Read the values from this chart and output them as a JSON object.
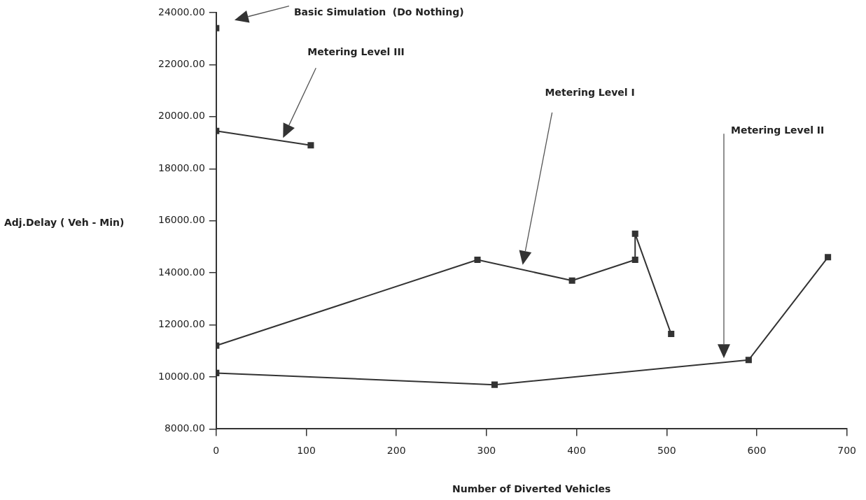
{
  "chart_data": {
    "type": "line",
    "xlabel": "Number of Diverted Vehicles",
    "ylabel": "Adj.Delay ( Veh - Min)",
    "xlim": [
      0,
      700
    ],
    "xticks": [
      0,
      100,
      200,
      300,
      400,
      500,
      600,
      700
    ],
    "ylim": [
      8000,
      24000
    ],
    "yticks": [
      {
        "value": 8000,
        "label": "8000.00"
      },
      {
        "value": 10000,
        "label": "10000.00"
      },
      {
        "value": 12000,
        "label": "12000.00"
      },
      {
        "value": 14000,
        "label": "14000.00"
      },
      {
        "value": 16000,
        "label": "16000.00"
      },
      {
        "value": 18000,
        "label": "18000.00"
      },
      {
        "value": 20000,
        "label": "20000.00"
      },
      {
        "value": 22000,
        "label": "22000.00"
      },
      {
        "value": 24000,
        "label": "24000.00"
      }
    ],
    "grid": false,
    "legend": false,
    "marker": "square",
    "line_style": "solid",
    "series": [
      {
        "color": "#333333",
        "x": [
          0
        ],
        "values": [
          23400
        ]
      },
      {
        "color": "#333333",
        "x": [
          0,
          105
        ],
        "values": [
          19450,
          18900
        ]
      },
      {
        "color": "#333333",
        "x": [
          0,
          290,
          395,
          465,
          465,
          505
        ],
        "values": [
          11200,
          14500,
          13700,
          14500,
          15500,
          11650
        ]
      },
      {
        "color": "#333333",
        "x": [
          0,
          309,
          591,
          679
        ],
        "values": [
          10150,
          9700,
          10650,
          14600
        ]
      }
    ],
    "annotations": [
      "Basic Simulation  (Do Nothing)",
      "Metering Level III",
      "Metering Level I",
      "Metering Level II"
    ]
  }
}
